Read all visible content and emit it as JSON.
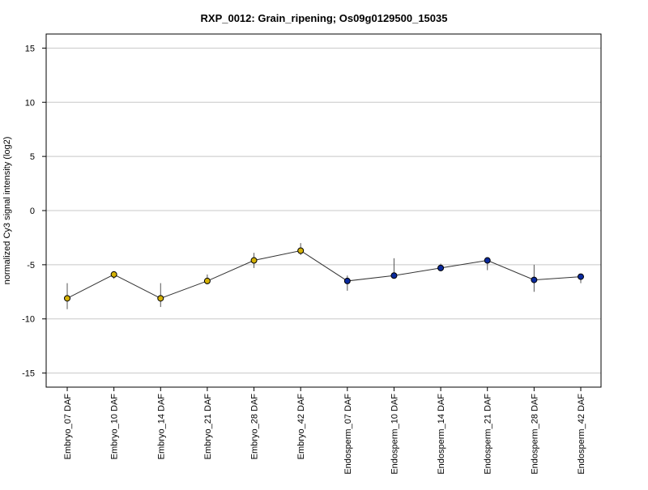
{
  "chart_data": {
    "type": "line",
    "title": "RXP_0012: Grain_ripening; Os09g0129500_15035",
    "xlabel": "",
    "ylabel": "normalized Cy3 signal intensity (log2)",
    "ylim": [
      -16.3,
      16.3
    ],
    "yticks": [
      15,
      10,
      5,
      0,
      -5,
      -10,
      -15
    ],
    "ytick_labels": [
      "15",
      "10",
      "5",
      "0",
      "-5",
      "-10",
      "-15"
    ],
    "grid": "horizontal",
    "categories": [
      "Embryo_07 DAF",
      "Embryo_10 DAF",
      "Embryo_14 DAF",
      "Embryo_21 DAF",
      "Embryo_28 DAF",
      "Embryo_42 DAF",
      "Endosperm_07 DAF",
      "Endosperm_10 DAF",
      "Endosperm_14 DAF",
      "Endosperm_21 DAF",
      "Endosperm_28 DAF",
      "Endosperm_42 DAF"
    ],
    "values": [
      -8.1,
      -5.9,
      -8.1,
      -6.5,
      -4.6,
      -3.7,
      -6.5,
      -6.0,
      -5.3,
      -4.6,
      -6.4,
      -6.1
    ],
    "error_low": [
      -9.1,
      -6.3,
      -8.9,
      -6.8,
      -5.3,
      -4.1,
      -7.4,
      -6.1,
      -5.6,
      -5.5,
      -7.5,
      -6.7
    ],
    "error_high": [
      -6.7,
      -5.6,
      -6.7,
      -5.9,
      -3.9,
      -3.0,
      -6.0,
      -4.4,
      -4.9,
      -4.4,
      -5.0,
      -5.9
    ],
    "point_colors": [
      "#d4b106",
      "#d4b106",
      "#d4b106",
      "#d4b106",
      "#d4b106",
      "#d4b106",
      "#0a2a9e",
      "#0a2a9e",
      "#0a2a9e",
      "#0a2a9e",
      "#0a2a9e",
      "#0a2a9e"
    ],
    "line_color": "#333333",
    "grid_color": "#c8c8c8"
  }
}
